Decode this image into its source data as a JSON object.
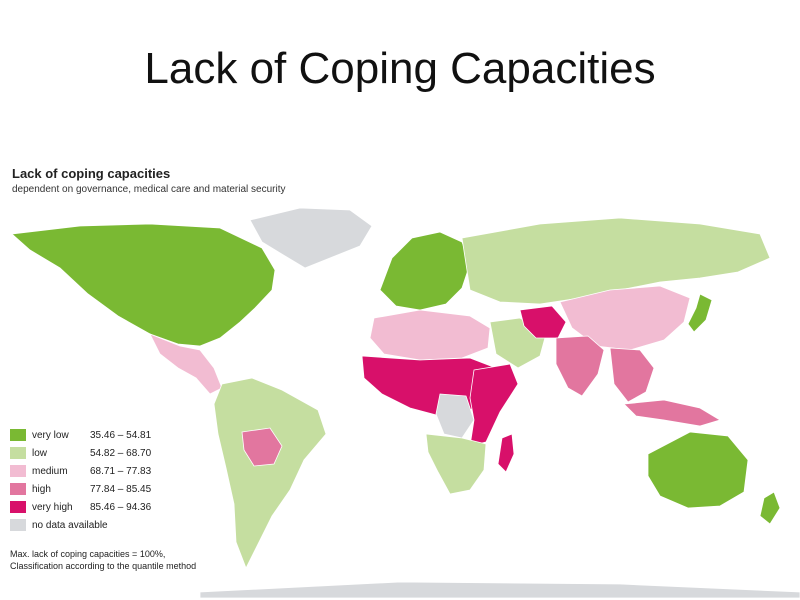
{
  "slide": {
    "title": "Lack of Coping Capacities"
  },
  "map": {
    "title": "Lack of coping capacities",
    "subtitle": "dependent on governance, medical care and material security"
  },
  "colors": {
    "very_low": "#7ab933",
    "low": "#c5dea0",
    "medium": "#f2bcd2",
    "high": "#e2769f",
    "very_high": "#d8106a",
    "no_data": "#d7d9dc"
  },
  "legend": {
    "items": [
      {
        "label": "very low",
        "range": "35.46 – 54.81",
        "color": "#7ab933"
      },
      {
        "label": "low",
        "range": "54.82 – 68.70",
        "color": "#c5dea0"
      },
      {
        "label": "medium",
        "range": "68.71 – 77.83",
        "color": "#f2bcd2"
      },
      {
        "label": "high",
        "range": "77.84 – 85.45",
        "color": "#e2769f"
      },
      {
        "label": "very high",
        "range": "85.46 – 94.36",
        "color": "#d8106a"
      },
      {
        "label": "no data available",
        "range": "",
        "color": "#d7d9dc"
      }
    ],
    "note_line1": "Max. lack of coping capacities = 100%,",
    "note_line2": "Classification according to the quantile method"
  },
  "regions": [
    {
      "name": "greenland",
      "class": "no_data"
    },
    {
      "name": "north-america",
      "class": "very_low"
    },
    {
      "name": "mexico-central-america",
      "class": "medium"
    },
    {
      "name": "south-america",
      "class": "low"
    },
    {
      "name": "bolivia",
      "class": "high"
    },
    {
      "name": "europe",
      "class": "very_low"
    },
    {
      "name": "russia-central-asia",
      "class": "low"
    },
    {
      "name": "china",
      "class": "medium"
    },
    {
      "name": "japan",
      "class": "very_low"
    },
    {
      "name": "north-africa",
      "class": "medium"
    },
    {
      "name": "sahel-central-africa",
      "class": "very_high"
    },
    {
      "name": "dr-congo",
      "class": "no_data"
    },
    {
      "name": "east-africa",
      "class": "very_high"
    },
    {
      "name": "southern-africa",
      "class": "low"
    },
    {
      "name": "madagascar",
      "class": "very_high"
    },
    {
      "name": "arabia",
      "class": "low"
    },
    {
      "name": "afghanistan-pakistan",
      "class": "very_high"
    },
    {
      "name": "india",
      "class": "high"
    },
    {
      "name": "southeast-asia",
      "class": "high"
    },
    {
      "name": "indonesia",
      "class": "high"
    },
    {
      "name": "australia",
      "class": "very_low"
    },
    {
      "name": "new-zealand",
      "class": "very_low"
    },
    {
      "name": "antarctica",
      "class": "no_data"
    }
  ]
}
